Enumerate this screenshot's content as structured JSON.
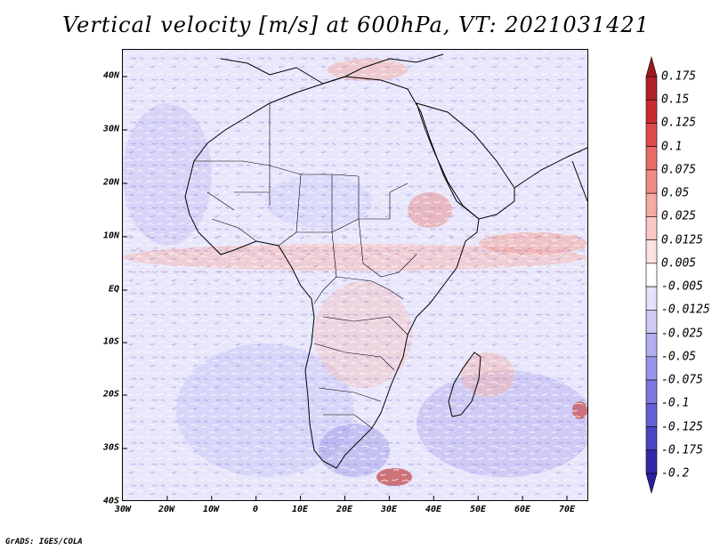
{
  "title": "Vertical velocity [m/s] at 600hPa, VT: 2021031421",
  "credit": "GrADS: IGES/COLA",
  "map": {
    "lat_labels": [
      "40N",
      "30N",
      "20N",
      "10N",
      "EQ",
      "10S",
      "20S",
      "30S",
      "40S"
    ],
    "lon_labels": [
      "30W",
      "20W",
      "10W",
      "0",
      "10E",
      "20E",
      "30E",
      "40E",
      "50E",
      "60E",
      "70E"
    ],
    "lat_range": [
      -40,
      45
    ],
    "lon_range": [
      -30,
      75
    ]
  },
  "colorbar": {
    "labels": [
      "0.175",
      "0.15",
      "0.125",
      "0.1",
      "0.075",
      "0.05",
      "0.025",
      "0.0125",
      "0.005",
      "-0.005",
      "-0.0125",
      "-0.025",
      "-0.05",
      "-0.075",
      "-0.1",
      "-0.125",
      "-0.175",
      "-0.2"
    ],
    "colors": [
      "#b0202a",
      "#cc2a33",
      "#de4a4c",
      "#e96b68",
      "#f08c86",
      "#f5aaa4",
      "#f9c8c4",
      "#fce2df",
      "#ffffff",
      "#e4e2fb",
      "#cdcaf6",
      "#b3aff0",
      "#9995e8",
      "#7f79df",
      "#6560d4",
      "#4a45c4",
      "#3028a8"
    ],
    "max_triangle_color": "#a01820",
    "min_triangle_color": "#2a1fa0"
  }
}
